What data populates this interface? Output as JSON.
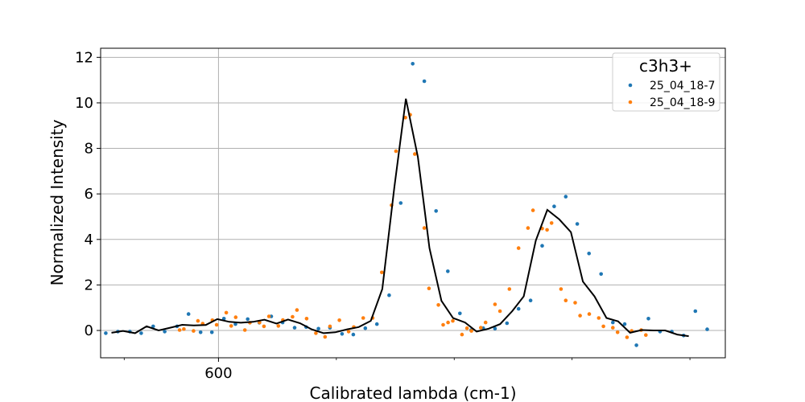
{
  "chart_data": {
    "type": "scatter",
    "title": "",
    "xlabel": "Calibrated lambda (cm-1)",
    "ylabel": "Normalized Intensity",
    "xlim": [
      550,
      815
    ],
    "ylim": [
      -1.2,
      12.4
    ],
    "x_major_ticks": [
      600
    ],
    "x_minor_ticks": [
      560,
      650,
      700,
      750,
      800
    ],
    "y_ticks": [
      0,
      2,
      4,
      6,
      8,
      10,
      12
    ],
    "grid": true,
    "legend_title": "c3h3+",
    "legend_position": "top-right",
    "series": [
      {
        "name": "25_04_18-7",
        "kind": "points",
        "color": "#1f77b4",
        "x": [
          552.2,
          557.3,
          562.4,
          567.2,
          572.3,
          577.2,
          582.4,
          587.3,
          592.4,
          597.2,
          602.3,
          607.2,
          612.4,
          617.3,
          622.4,
          627.2,
          632.3,
          637.2,
          642.4,
          647.3,
          652.4,
          657.2,
          662.3,
          667.2,
          672.4,
          677.3,
          682.4,
          687.3,
          692.3,
          697.3,
          702.4,
          707.2,
          712.3,
          717.3,
          722.4,
          727.3,
          732.4,
          737.3,
          742.4,
          747.3,
          752.2,
          757.2,
          762.3,
          767.3,
          772.3,
          777.3,
          782.4,
          787.3,
          792.3,
          797.3,
          802.3,
          807.3
        ],
        "y": [
          -0.12,
          -0.05,
          -0.05,
          -0.12,
          0.18,
          -0.05,
          0.18,
          0.72,
          -0.08,
          -0.08,
          0.52,
          0.28,
          0.5,
          0.34,
          0.62,
          0.35,
          0.12,
          0.15,
          0.08,
          0.12,
          -0.15,
          -0.18,
          0.1,
          0.28,
          1.55,
          5.6,
          11.72,
          10.95,
          5.25,
          2.6,
          0.75,
          0.02,
          0.1,
          0.08,
          0.32,
          0.95,
          1.32,
          3.72,
          5.45,
          5.88,
          4.68,
          3.38,
          2.48,
          0.35,
          0.28,
          -0.65,
          0.52,
          -0.05,
          -0.05,
          -0.22,
          0.85,
          0.05
        ]
      },
      {
        "name": "25_04_18-9",
        "kind": "points",
        "color": "#ff7f0e",
        "x": [
          583.5,
          585.3,
          589.4,
          591.3,
          593.3,
          597.4,
          599.2,
          603.3,
          605.4,
          607.3,
          611.2,
          613.3,
          617.4,
          619.3,
          621.4,
          625.4,
          627.3,
          631.4,
          633.3,
          637.4,
          641.3,
          645.2,
          647.3,
          651.3,
          655.2,
          657.4,
          661.4,
          665.4,
          669.3,
          673.4,
          675.3,
          679.3,
          681.3,
          683.3,
          687.3,
          689.3,
          693.3,
          695.3,
          697.4,
          699.4,
          703.3,
          705.4,
          707.3,
          711.3,
          713.3,
          717.3,
          719.4,
          723.4,
          727.3,
          731.3,
          733.4,
          737.3,
          739.4,
          741.3,
          745.3,
          747.3,
          751.3,
          753.4,
          757.3,
          761.3,
          763.3,
          767.3,
          769.3,
          773.3,
          775.3,
          779.3,
          781.3
        ],
        "y": [
          0.02,
          0.06,
          -0.02,
          0.42,
          0.3,
          0.45,
          0.25,
          0.78,
          0.2,
          0.58,
          0.02,
          0.34,
          0.35,
          0.18,
          0.62,
          0.2,
          0.46,
          0.6,
          0.9,
          0.52,
          -0.12,
          -0.28,
          0.18,
          0.45,
          -0.05,
          0.15,
          0.55,
          0.55,
          2.55,
          5.5,
          7.88,
          9.35,
          9.48,
          7.75,
          4.5,
          1.85,
          1.12,
          0.25,
          0.35,
          0.42,
          -0.18,
          0.1,
          -0.02,
          0.12,
          0.35,
          1.15,
          0.85,
          1.82,
          3.62,
          4.5,
          5.28,
          4.48,
          4.42,
          4.72,
          1.82,
          1.32,
          1.22,
          0.65,
          0.72,
          0.55,
          0.18,
          0.12,
          -0.08,
          -0.3,
          -0.02,
          0.02,
          -0.2
        ]
      },
      {
        "name": "",
        "kind": "line",
        "color": "#000000",
        "x": [
          554.6,
          559.5,
          564.6,
          569.5,
          574.6,
          579.5,
          584.6,
          589.5,
          594.6,
          599.5,
          604.6,
          609.5,
          614.6,
          619.5,
          624.6,
          629.5,
          634.6,
          639.5,
          644.6,
          649.5,
          654.6,
          659.5,
          664.6,
          669.5,
          674.6,
          679.5,
          684.6,
          689.5,
          694.6,
          699.5,
          704.6,
          709.5,
          714.6,
          719.5,
          724.6,
          729.5,
          734.6,
          739.5,
          744.6,
          749.5,
          754.6,
          759.5,
          764.6,
          769.5,
          774.6,
          779.5,
          784.6,
          789.5,
          794.6,
          799.5
        ],
        "y": [
          -0.1,
          -0.02,
          -0.12,
          0.18,
          0.0,
          0.12,
          0.25,
          0.22,
          0.24,
          0.5,
          0.38,
          0.34,
          0.38,
          0.47,
          0.3,
          0.48,
          0.32,
          0.05,
          -0.12,
          -0.08,
          0.05,
          0.15,
          0.42,
          1.82,
          6.3,
          10.18,
          7.62,
          3.62,
          1.3,
          0.55,
          0.35,
          -0.05,
          0.08,
          0.28,
          0.85,
          1.5,
          3.95,
          5.3,
          4.88,
          4.32,
          2.15,
          1.5,
          0.55,
          0.4,
          -0.1,
          0.02,
          0.0,
          0.0,
          -0.18,
          -0.25
        ]
      }
    ]
  }
}
